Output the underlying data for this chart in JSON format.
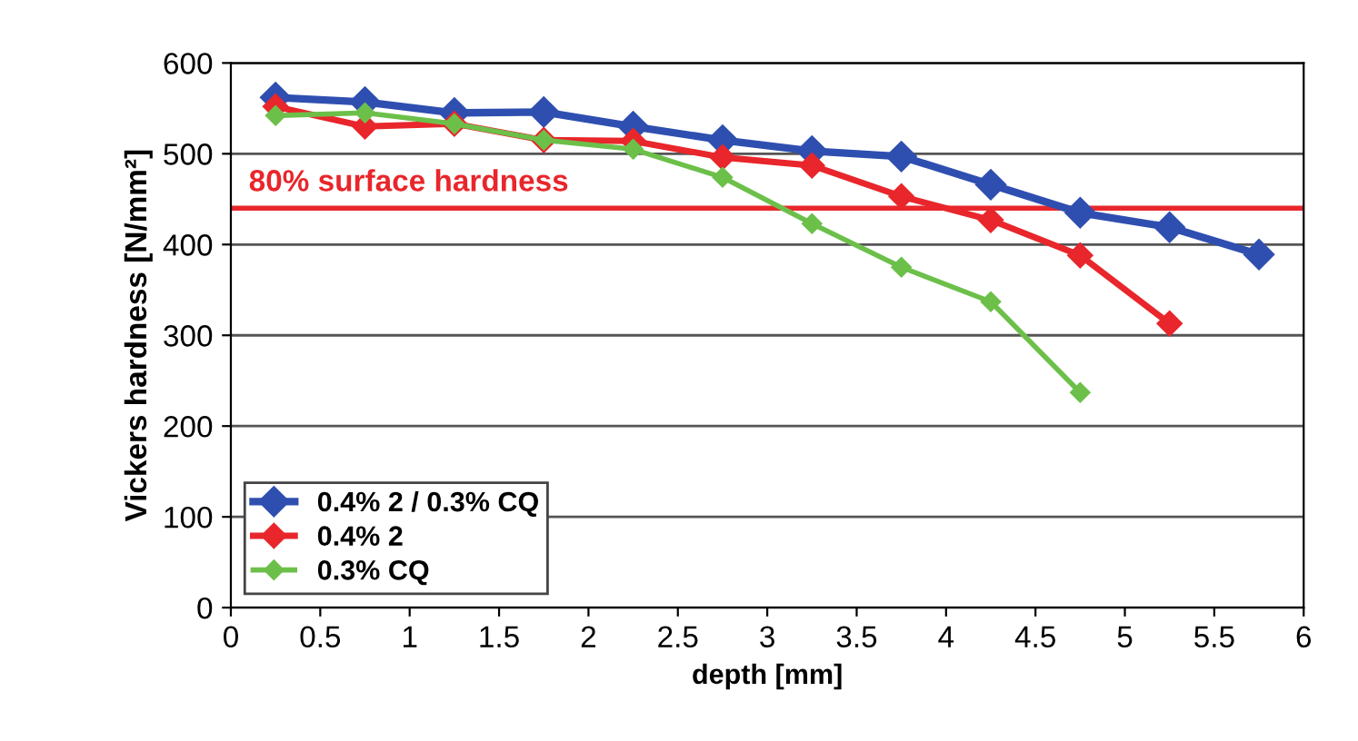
{
  "chart_data": {
    "type": "line",
    "xlabel": "depth [mm]",
    "ylabel": "Vickers hardness [N/mm²]",
    "xlim": [
      0,
      6
    ],
    "xticks": [
      0,
      0.5,
      1,
      1.5,
      2,
      2.5,
      3,
      3.5,
      4,
      4.5,
      5,
      5.5,
      6
    ],
    "ylim": [
      0,
      600
    ],
    "yticks": [
      0,
      100,
      200,
      300,
      400,
      500,
      600
    ],
    "grid": "y",
    "legend": "bottom left",
    "marker": "diamond",
    "line_style": "solid",
    "series": [
      {
        "name": "0.4% 2 / 0.3% CQ",
        "color": "#2f4fb0",
        "x": [
          0.25,
          0.75,
          1.25,
          1.75,
          2.25,
          2.75,
          3.25,
          3.75,
          4.25,
          4.75,
          5.25,
          5.75
        ],
        "values": [
          562,
          557,
          545,
          546,
          530,
          515,
          503,
          497,
          466,
          435,
          419,
          389
        ]
      },
      {
        "name": "0.4% 2",
        "color": "#e8262b",
        "x": [
          0.25,
          0.75,
          1.25,
          1.75,
          2.25,
          2.75,
          3.25,
          3.75,
          4.25,
          4.75,
          5.25
        ],
        "values": [
          552,
          530,
          533,
          515,
          514,
          496,
          487,
          453,
          427,
          388,
          313
        ]
      },
      {
        "name": "0.3% CQ",
        "color": "#6cc04a",
        "x": [
          0.25,
          0.75,
          1.25,
          1.75,
          2.25,
          2.75,
          3.25,
          3.75,
          4.25,
          4.75
        ],
        "values": [
          542,
          545,
          533,
          515,
          505,
          474,
          423,
          375,
          337,
          237
        ]
      }
    ],
    "ref_lines": [
      {
        "axis": "y",
        "value": 440,
        "label": "80% surface hardness",
        "color": "#e8262b"
      }
    ]
  }
}
